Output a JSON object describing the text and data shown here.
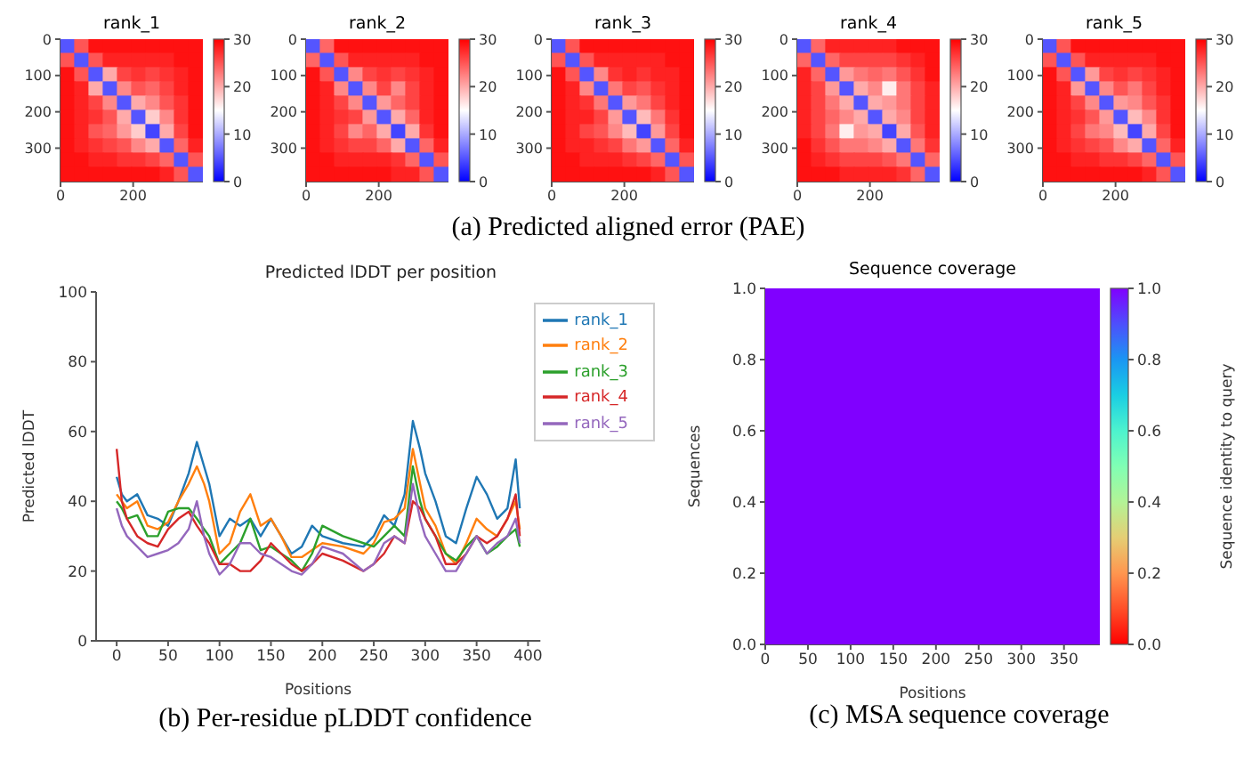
{
  "chart_data": [
    {
      "type": "heatmap",
      "title": "rank_1",
      "xlim": [
        0,
        392
      ],
      "ylim": [
        392,
        0
      ],
      "xticks": [
        0,
        200
      ],
      "yticks": [
        0,
        100,
        200,
        300
      ],
      "clim": [
        0,
        30
      ],
      "cticks": [
        0,
        10,
        20,
        30
      ],
      "cells": [
        [
          5,
          25,
          29,
          29,
          29,
          29,
          29,
          29,
          29,
          29
        ],
        [
          25,
          5,
          25,
          28,
          28,
          28,
          28,
          28,
          29,
          29
        ],
        [
          29,
          25,
          5,
          20,
          26,
          27,
          26,
          27,
          28,
          29
        ],
        [
          29,
          28,
          20,
          5,
          22,
          25,
          24,
          26,
          28,
          29
        ],
        [
          29,
          28,
          26,
          22,
          5,
          20,
          22,
          25,
          27,
          29
        ],
        [
          29,
          28,
          27,
          25,
          20,
          5,
          18,
          22,
          27,
          29
        ],
        [
          29,
          28,
          25,
          24,
          21,
          18,
          4,
          20,
          26,
          29
        ],
        [
          29,
          28,
          27,
          26,
          25,
          22,
          20,
          5,
          24,
          28
        ],
        [
          29,
          29,
          28,
          28,
          27,
          27,
          26,
          24,
          5,
          25
        ],
        [
          29,
          29,
          29,
          29,
          29,
          29,
          29,
          28,
          25,
          5
        ]
      ]
    },
    {
      "type": "heatmap",
      "title": "rank_2",
      "xlim": [
        0,
        392
      ],
      "ylim": [
        392,
        0
      ],
      "xticks": [
        0,
        200
      ],
      "yticks": [
        0,
        100,
        200,
        300
      ],
      "clim": [
        0,
        30
      ],
      "cticks": [
        0,
        10,
        20,
        30
      ],
      "cells": [
        [
          5,
          24,
          29,
          29,
          29,
          29,
          29,
          29,
          29,
          29
        ],
        [
          24,
          5,
          25,
          28,
          28,
          28,
          28,
          28,
          29,
          29
        ],
        [
          29,
          25,
          5,
          22,
          26,
          27,
          26,
          27,
          28,
          29
        ],
        [
          29,
          28,
          22,
          5,
          22,
          26,
          22,
          26,
          28,
          29
        ],
        [
          29,
          28,
          26,
          22,
          5,
          21,
          24,
          26,
          28,
          29
        ],
        [
          29,
          28,
          27,
          26,
          21,
          5,
          20,
          24,
          28,
          29
        ],
        [
          29,
          28,
          26,
          22,
          24,
          20,
          4,
          20,
          27,
          29
        ],
        [
          29,
          28,
          27,
          26,
          26,
          24,
          20,
          5,
          24,
          28
        ],
        [
          29,
          29,
          28,
          28,
          28,
          28,
          27,
          24,
          5,
          25
        ],
        [
          29,
          29,
          29,
          29,
          29,
          29,
          28,
          28,
          25,
          5
        ]
      ]
    },
    {
      "type": "heatmap",
      "title": "rank_3",
      "xlim": [
        0,
        392
      ],
      "ylim": [
        392,
        0
      ],
      "xticks": [
        0,
        200
      ],
      "yticks": [
        0,
        100,
        200,
        300
      ],
      "clim": [
        0,
        30
      ],
      "cticks": [
        0,
        10,
        20,
        30
      ],
      "annotations": [
        "(a) Predicted aligned error (PAE)"
      ],
      "cells": [
        [
          5,
          25,
          29,
          29,
          29,
          29,
          29,
          29,
          29,
          29
        ],
        [
          25,
          5,
          25,
          28,
          28,
          28,
          28,
          28,
          29,
          29
        ],
        [
          29,
          25,
          5,
          22,
          27,
          28,
          27,
          28,
          28,
          29
        ],
        [
          29,
          28,
          22,
          5,
          23,
          26,
          25,
          27,
          28,
          29
        ],
        [
          29,
          28,
          27,
          23,
          5,
          21,
          23,
          26,
          28,
          29
        ],
        [
          29,
          28,
          28,
          26,
          21,
          5,
          19,
          23,
          27,
          29
        ],
        [
          29,
          28,
          26,
          25,
          22,
          19,
          4,
          21,
          26,
          29
        ],
        [
          29,
          28,
          28,
          27,
          26,
          23,
          21,
          5,
          24,
          28
        ],
        [
          29,
          29,
          28,
          28,
          28,
          27,
          26,
          24,
          5,
          25
        ],
        [
          29,
          29,
          29,
          29,
          29,
          29,
          29,
          28,
          25,
          5
        ]
      ]
    },
    {
      "type": "heatmap",
      "title": "rank_4",
      "xlim": [
        0,
        392
      ],
      "ylim": [
        392,
        0
      ],
      "xticks": [
        0,
        200
      ],
      "yticks": [
        0,
        100,
        200,
        300
      ],
      "clim": [
        0,
        30
      ],
      "cticks": [
        0,
        10,
        20,
        30
      ],
      "cells": [
        [
          5,
          24,
          28,
          28,
          28,
          28,
          28,
          29,
          29,
          29
        ],
        [
          24,
          5,
          24,
          26,
          26,
          26,
          26,
          27,
          28,
          29
        ],
        [
          28,
          24,
          5,
          21,
          23,
          24,
          23,
          25,
          27,
          29
        ],
        [
          28,
          26,
          21,
          5,
          20,
          22,
          16,
          23,
          26,
          28
        ],
        [
          28,
          26,
          23,
          20,
          5,
          20,
          21,
          23,
          26,
          28
        ],
        [
          28,
          26,
          24,
          22,
          20,
          5,
          20,
          22,
          26,
          28
        ],
        [
          28,
          26,
          23,
          16,
          21,
          20,
          4,
          20,
          25,
          28
        ],
        [
          29,
          27,
          25,
          23,
          23,
          22,
          20,
          5,
          23,
          27
        ],
        [
          29,
          28,
          27,
          26,
          26,
          26,
          25,
          23,
          5,
          24
        ],
        [
          29,
          29,
          29,
          28,
          28,
          28,
          28,
          27,
          24,
          5
        ]
      ]
    },
    {
      "type": "heatmap",
      "title": "rank_5",
      "xlim": [
        0,
        392
      ],
      "ylim": [
        392,
        0
      ],
      "xticks": [
        0,
        200
      ],
      "yticks": [
        0,
        100,
        200,
        300
      ],
      "clim": [
        0,
        30
      ],
      "cticks": [
        0,
        10,
        20,
        30
      ],
      "cells": [
        [
          5,
          25,
          29,
          29,
          29,
          29,
          29,
          29,
          29,
          29
        ],
        [
          25,
          5,
          25,
          28,
          28,
          28,
          28,
          28,
          29,
          29
        ],
        [
          29,
          25,
          5,
          21,
          26,
          27,
          26,
          27,
          28,
          29
        ],
        [
          29,
          28,
          21,
          5,
          22,
          25,
          23,
          26,
          28,
          29
        ],
        [
          29,
          28,
          26,
          22,
          5,
          21,
          22,
          25,
          27,
          29
        ],
        [
          29,
          28,
          27,
          25,
          21,
          5,
          19,
          22,
          27,
          29
        ],
        [
          29,
          28,
          26,
          23,
          22,
          19,
          4,
          20,
          26,
          29
        ],
        [
          29,
          28,
          27,
          26,
          25,
          22,
          20,
          5,
          24,
          28
        ],
        [
          29,
          29,
          28,
          28,
          27,
          27,
          26,
          24,
          5,
          25
        ],
        [
          29,
          29,
          29,
          29,
          29,
          29,
          29,
          28,
          25,
          5
        ]
      ]
    },
    {
      "type": "line",
      "title": "Predicted lDDT per position",
      "xlabel": "Positions",
      "ylabel": "Predicted lDDT",
      "xlim": [
        -20,
        412
      ],
      "ylim": [
        0,
        100
      ],
      "xticks": [
        0,
        50,
        100,
        150,
        200,
        250,
        300,
        350,
        400
      ],
      "yticks": [
        0,
        20,
        40,
        60,
        80,
        100
      ],
      "legend": "top right",
      "annotations": [
        "(b) Per-residue pLDDT confidence"
      ],
      "x": [
        0,
        5,
        10,
        20,
        30,
        40,
        50,
        60,
        70,
        78,
        85,
        90,
        100,
        110,
        120,
        130,
        140,
        150,
        160,
        170,
        180,
        190,
        200,
        220,
        240,
        250,
        260,
        270,
        280,
        288,
        295,
        300,
        310,
        320,
        330,
        340,
        350,
        360,
        370,
        380,
        388,
        392
      ],
      "series": [
        {
          "name": "rank_1",
          "color": "#1f77b4",
          "values": [
            47,
            42,
            40,
            42,
            36,
            35,
            33,
            40,
            48,
            57,
            50,
            45,
            30,
            35,
            33,
            35,
            30,
            35,
            30,
            25,
            27,
            33,
            30,
            28,
            27,
            30,
            36,
            33,
            42,
            63,
            55,
            48,
            40,
            30,
            28,
            38,
            47,
            42,
            35,
            38,
            52,
            38
          ]
        },
        {
          "name": "rank_2",
          "color": "#ff7f0e",
          "values": [
            42,
            40,
            38,
            40,
            33,
            32,
            34,
            40,
            45,
            50,
            45,
            40,
            25,
            28,
            37,
            42,
            33,
            35,
            30,
            24,
            24,
            26,
            28,
            27,
            25,
            28,
            34,
            35,
            38,
            55,
            45,
            38,
            33,
            25,
            22,
            28,
            35,
            32,
            30,
            35,
            40,
            32
          ]
        },
        {
          "name": "rank_3",
          "color": "#2ca02c",
          "values": [
            40,
            38,
            35,
            36,
            30,
            30,
            37,
            38,
            38,
            35,
            32,
            30,
            22,
            25,
            28,
            35,
            26,
            27,
            25,
            23,
            20,
            25,
            33,
            30,
            28,
            27,
            30,
            33,
            30,
            50,
            40,
            35,
            30,
            25,
            23,
            27,
            30,
            25,
            27,
            30,
            32,
            27
          ]
        },
        {
          "name": "rank_4",
          "color": "#d62728",
          "values": [
            55,
            40,
            35,
            30,
            28,
            27,
            32,
            35,
            37,
            33,
            30,
            28,
            22,
            22,
            20,
            20,
            23,
            28,
            25,
            22,
            20,
            22,
            25,
            23,
            20,
            22,
            25,
            30,
            28,
            40,
            38,
            35,
            30,
            22,
            22,
            25,
            30,
            28,
            30,
            35,
            42,
            30
          ]
        },
        {
          "name": "rank_5",
          "color": "#9467bd",
          "values": [
            38,
            33,
            30,
            27,
            24,
            25,
            26,
            28,
            32,
            40,
            30,
            25,
            19,
            22,
            28,
            28,
            25,
            24,
            22,
            20,
            19,
            22,
            27,
            25,
            20,
            22,
            28,
            30,
            28,
            45,
            35,
            30,
            25,
            20,
            20,
            25,
            30,
            25,
            28,
            30,
            35,
            28
          ]
        }
      ]
    },
    {
      "type": "heatmap",
      "title": "Sequence coverage",
      "xlabel": "Positions",
      "ylabel": "Sequences",
      "clabel": "Sequence identity to query",
      "xlim": [
        0,
        392
      ],
      "ylim": [
        0,
        1
      ],
      "xticks": [
        0,
        50,
        100,
        150,
        200,
        250,
        300,
        350
      ],
      "yticks": [
        {
          "value": 0,
          "label": "0.0"
        },
        0.2,
        0.4,
        0.6,
        0.8,
        {
          "value": 1,
          "label": "1.0"
        }
      ],
      "clim": [
        0,
        1
      ],
      "cticks": [
        {
          "value": 0,
          "label": "0.0"
        },
        0.2,
        0.4,
        0.6,
        0.8,
        {
          "value": 1,
          "label": "1.0"
        }
      ],
      "annotations": [
        "(c) MSA sequence coverage"
      ],
      "cells": [
        [
          1.0
        ]
      ]
    }
  ]
}
